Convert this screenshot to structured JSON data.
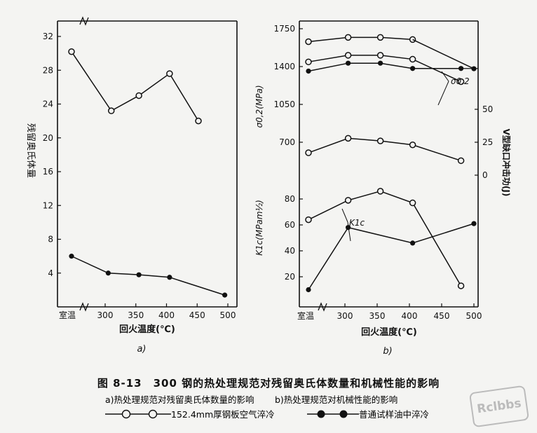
{
  "figure": {
    "caption_title": "图 8-13　300 钢的热处理规范对残留奥氏体数量和机械性能的影响",
    "caption_a": "a)热处理规范对残留奥氏体数量的影响",
    "caption_b": "b)热处理规范对机械性能的影响",
    "legend_open_text": "152.4mm厚钢板空气淬冷",
    "legend_filled_text": "普通试样油中淬冷",
    "watermark": "Rclbbs",
    "colors": {
      "line": "#111111",
      "background": "#f4f4f2"
    }
  },
  "chart_data": [
    {
      "id": "a",
      "type": "line",
      "panel_label": "a)",
      "xlabel": "回火温度(℃)",
      "ylabel": "残留奥氏体量",
      "x_ticks": [
        "室温",
        "300",
        "350",
        "400",
        "450",
        "500"
      ],
      "y_ticks": [
        "4",
        "8",
        "12",
        "16",
        "20",
        "24",
        "28",
        "32"
      ],
      "ylim": [
        0,
        34
      ],
      "series": [
        {
          "marker": "open",
          "x": [
            "室温",
            310,
            355,
            405,
            452
          ],
          "y": [
            30.2,
            23.2,
            25.0,
            27.6,
            22.0
          ]
        },
        {
          "marker": "filled",
          "x": [
            "室温",
            305,
            355,
            405,
            495
          ],
          "y": [
            6.0,
            4.0,
            3.8,
            3.5,
            1.4
          ]
        }
      ]
    },
    {
      "id": "b_yield",
      "type": "line",
      "panel_label": "b)",
      "ylabel": "σ0,2(MPa)",
      "annotation": "σ0.2",
      "y_ticks": [
        "700",
        "1050",
        "1400",
        "1750"
      ],
      "series": [
        {
          "marker": "open",
          "x": [
            "室温",
            305,
            355,
            405
          ],
          "y": [
            1630,
            1670,
            1670,
            1650
          ]
        },
        {
          "marker": "filled",
          "x": [
            500
          ],
          "y": [
            1380
          ]
        }
      ]
    },
    {
      "id": "b_impact",
      "type": "line",
      "y2label": "V型缺口冲击功(J)",
      "y2_ticks": [
        "0",
        "25",
        "50"
      ],
      "series": [
        {
          "marker": "open",
          "x": [
            "室温",
            305,
            355,
            405,
            480
          ],
          "y": [
            17,
            28,
            26,
            23,
            11
          ]
        },
        {
          "marker": "open",
          "x": [
            "室温",
            305,
            355,
            405,
            480
          ],
          "y": [
            86,
            91,
            91,
            88,
            71
          ]
        },
        {
          "marker": "filled",
          "x": [
            "室温",
            305,
            355,
            405,
            480
          ],
          "y": [
            79,
            85,
            85,
            81,
            81
          ]
        }
      ]
    },
    {
      "id": "b_toughness",
      "type": "line",
      "ylabel": "K1c(MPam½)",
      "annotation": "K1c",
      "xlabel": "回火温度(℃)",
      "x_ticks": [
        "室温",
        "300",
        "350",
        "400",
        "450",
        "500"
      ],
      "y_ticks": [
        "20",
        "40",
        "60",
        "80"
      ],
      "series": [
        {
          "marker": "open",
          "x": [
            "室温",
            305,
            355,
            405,
            480
          ],
          "y": [
            64,
            79,
            86,
            77,
            13
          ]
        },
        {
          "marker": "filled",
          "x": [
            "室温",
            305,
            405,
            500
          ],
          "y": [
            10,
            58,
            46,
            61
          ]
        }
      ]
    }
  ]
}
